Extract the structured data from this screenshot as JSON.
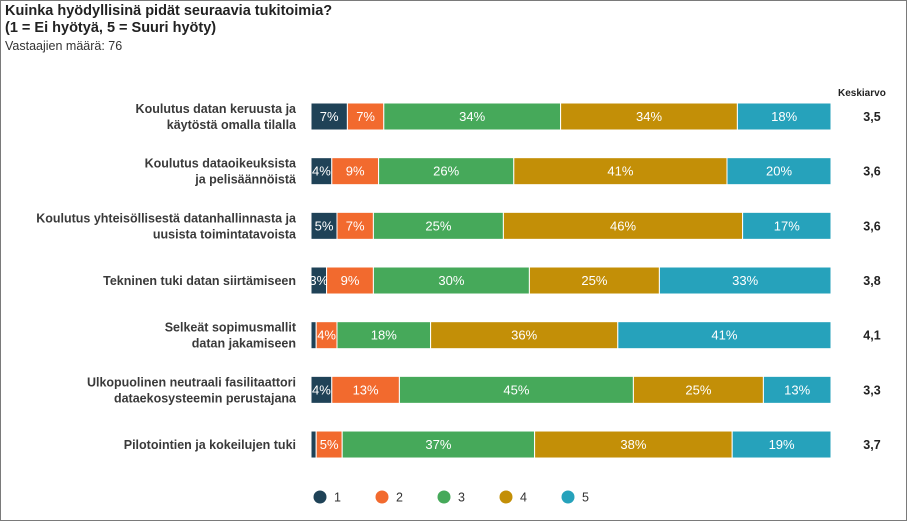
{
  "header": {
    "title": "Kuinka hyödyllisinä pidät seuraavia tukitoimia?",
    "subtitle": "(1 = Ei hyötyä, 5 = Suuri hyöty)",
    "respondents": "Vastaajien määrä: 76"
  },
  "avg_header": "Keskiarvo",
  "chart_data": {
    "type": "bar",
    "orientation": "horizontal",
    "stacked": true,
    "percent_stacked": true,
    "categories": [
      [
        "Koulutus datan keruusta ja",
        "käytöstä omalla tilalla"
      ],
      [
        "Koulutus dataoikeuksista",
        "ja pelisäännöistä"
      ],
      [
        "Koulutus yhteisöllisestä datanhallinnasta ja",
        "uusista toimintatavoista"
      ],
      [
        "Tekninen tuki datan siirtämiseen"
      ],
      [
        "Selkeät sopimusmallit",
        "datan jakamiseen"
      ],
      [
        "Ulkopuolinen neutraali fasilitaattori",
        "dataekosysteemin perustajana"
      ],
      [
        "Pilotointien ja kokeilujen tuki"
      ]
    ],
    "series": [
      {
        "name": "1",
        "color": "#1f4257",
        "values": [
          7,
          4,
          5,
          3,
          1,
          4,
          1
        ]
      },
      {
        "name": "2",
        "color": "#f26a2e",
        "values": [
          7,
          9,
          7,
          9,
          4,
          13,
          5
        ]
      },
      {
        "name": "3",
        "color": "#46a95a",
        "values": [
          34,
          26,
          25,
          30,
          18,
          45,
          37
        ]
      },
      {
        "name": "4",
        "color": "#c38f07",
        "values": [
          34,
          41,
          46,
          25,
          36,
          25,
          38
        ]
      },
      {
        "name": "5",
        "color": "#26a2bb",
        "values": [
          18,
          20,
          17,
          33,
          41,
          13,
          19
        ]
      }
    ],
    "averages": [
      "3,5",
      "3,6",
      "3,6",
      "3,8",
      "4,1",
      "3,3",
      "3,7"
    ],
    "legend_position": "bottom",
    "grid": false
  }
}
